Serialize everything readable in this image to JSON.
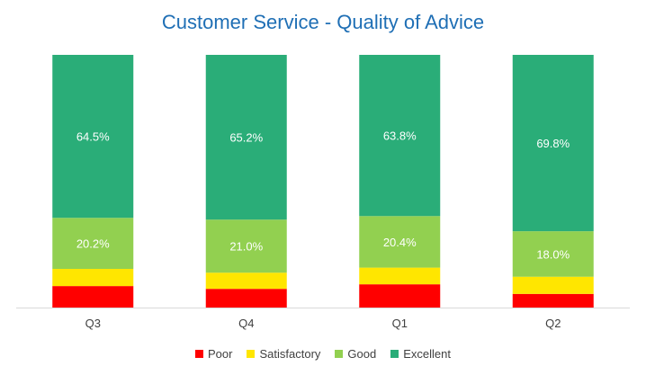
{
  "chart_data": {
    "type": "bar",
    "stacked": true,
    "title": "Customer Service - Quality of Advice",
    "categories": [
      "Q3",
      "Q4",
      "Q1",
      "Q2"
    ],
    "series": [
      {
        "name": "Poor",
        "color": "#ff0000",
        "values": [
          8.5,
          7.4,
          9.2,
          5.4
        ],
        "labels": [
          "",
          "",
          "",
          ""
        ]
      },
      {
        "name": "Satisfactory",
        "color": "#ffe600",
        "values": [
          6.8,
          6.4,
          6.6,
          6.8
        ],
        "labels": [
          "",
          "",
          "",
          ""
        ]
      },
      {
        "name": "Good",
        "color": "#92d050",
        "values": [
          20.2,
          21.0,
          20.4,
          18.0
        ],
        "labels": [
          "20.2%",
          "21.0%",
          "20.4%",
          "18.0%"
        ]
      },
      {
        "name": "Excellent",
        "color": "#2aad78",
        "values": [
          64.5,
          65.2,
          63.8,
          69.8
        ],
        "labels": [
          "64.5%",
          "65.2%",
          "63.8%",
          "69.8%"
        ]
      }
    ],
    "ylim": [
      0,
      100
    ],
    "grid": false,
    "legend_position": "bottom"
  }
}
